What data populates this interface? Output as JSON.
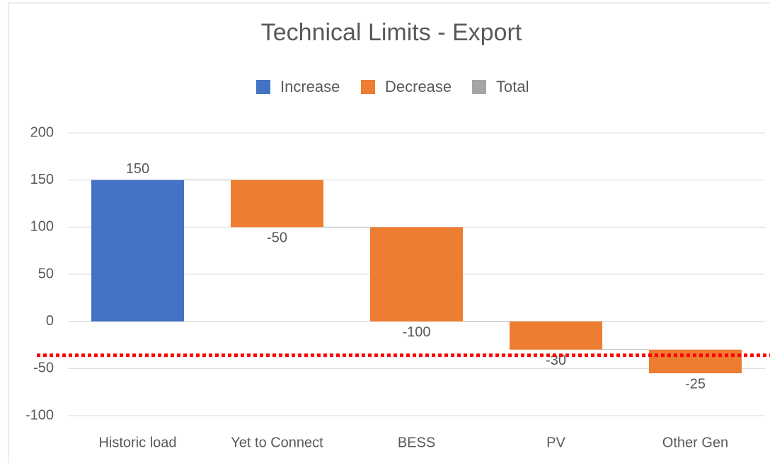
{
  "chart_data": {
    "type": "waterfall",
    "title": "Technical Limits - Export",
    "legend": [
      {
        "name": "Increase",
        "color": "#4472c4"
      },
      {
        "name": "Decrease",
        "color": "#ed7d31"
      },
      {
        "name": "Total",
        "color": "#a5a5a5"
      }
    ],
    "categories": [
      "Historic load",
      "Yet to Connect",
      "BESS",
      "PV",
      "Other Gen"
    ],
    "values": [
      150,
      -50,
      -100,
      -30,
      -25
    ],
    "ylim": [
      -100,
      200
    ],
    "yticks": [
      -100,
      -50,
      0,
      50,
      100,
      150,
      200
    ],
    "grid": true,
    "reference_line": {
      "value": -36,
      "color": "#ff0000"
    }
  }
}
